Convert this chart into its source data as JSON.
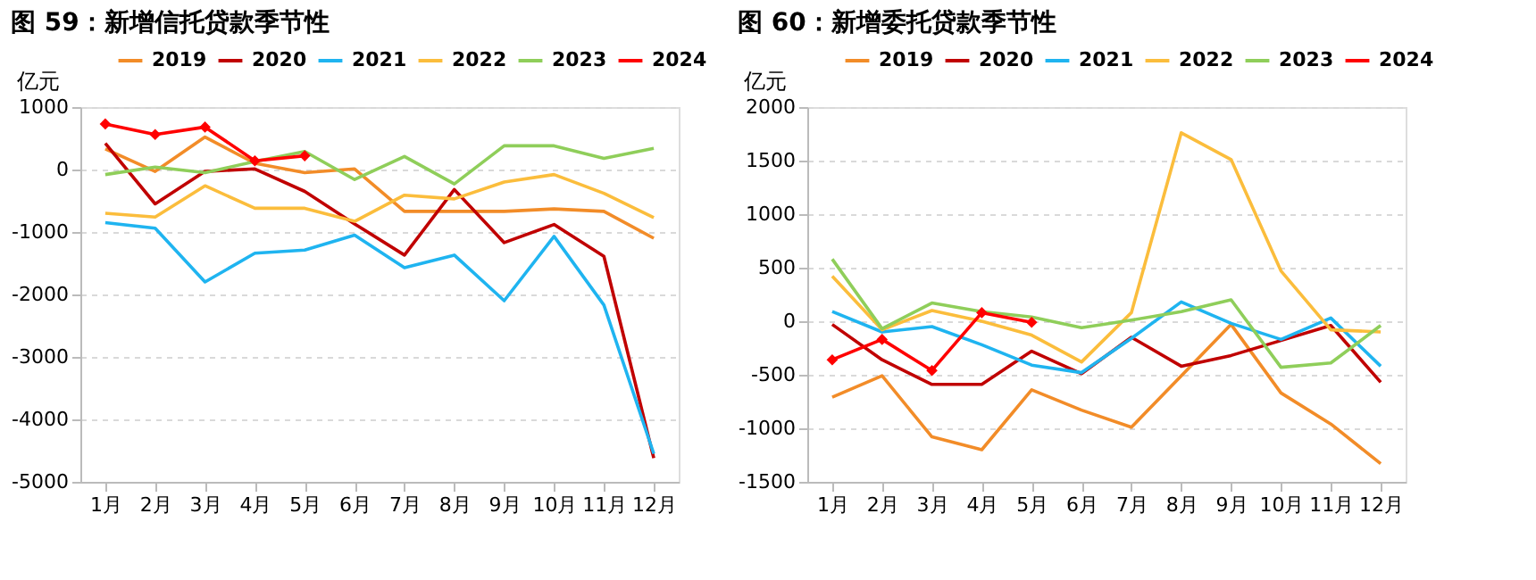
{
  "chart_data": [
    {
      "type": "line",
      "title": "图 59：新增信托贷款季节性",
      "ylabel": "亿元",
      "categories": [
        "1月",
        "2月",
        "3月",
        "4月",
        "5月",
        "6月",
        "7月",
        "8月",
        "9月",
        "10月",
        "11月",
        "12月"
      ],
      "ylim": [
        -5000,
        1000
      ],
      "yticks": [
        -5000,
        -4000,
        -3000,
        -2000,
        -1000,
        0,
        1000
      ],
      "grid": "y",
      "legend": "top",
      "line_style": "solid",
      "series": [
        {
          "name": "2019",
          "color": "#f28c28",
          "marker": "none",
          "values": [
            330,
            -30,
            520,
            100,
            -50,
            10,
            -670,
            -670,
            -670,
            -630,
            -670,
            -1100
          ]
        },
        {
          "name": "2020",
          "color": "#c00000",
          "marker": "none",
          "values": [
            420,
            -550,
            -30,
            10,
            -350,
            -870,
            -1370,
            -320,
            -1170,
            -880,
            -1390,
            -4620
          ]
        },
        {
          "name": "2021",
          "color": "#1fb4f0",
          "marker": "none",
          "values": [
            -850,
            -940,
            -1800,
            -1340,
            -1290,
            -1050,
            -1570,
            -1370,
            -2100,
            -1070,
            -2170,
            -4550
          ]
        },
        {
          "name": "2022",
          "color": "#fbbd3c",
          "marker": "none",
          "values": [
            -700,
            -760,
            -260,
            -620,
            -620,
            -830,
            -410,
            -470,
            -200,
            -80,
            -380,
            -770
          ]
        },
        {
          "name": "2023",
          "color": "#8fce5a",
          "marker": "none",
          "values": [
            -80,
            40,
            -50,
            130,
            290,
            -160,
            210,
            -230,
            380,
            380,
            180,
            340
          ]
        },
        {
          "name": "2024",
          "color": "#ff0000",
          "marker": "diamond",
          "values": [
            730,
            560,
            680,
            140,
            220,
            null,
            null,
            null,
            null,
            null,
            null,
            null
          ]
        }
      ]
    },
    {
      "type": "line",
      "title": "图 60：新增委托贷款季节性",
      "ylabel": "亿元",
      "categories": [
        "1月",
        "2月",
        "3月",
        "4月",
        "5月",
        "6月",
        "7月",
        "8月",
        "9月",
        "10月",
        "11月",
        "12月"
      ],
      "ylim": [
        -1500,
        2000
      ],
      "yticks": [
        -1500,
        -1000,
        -500,
        0,
        500,
        1000,
        1500,
        2000
      ],
      "grid": "y",
      "legend": "top",
      "line_style": "solid",
      "series": [
        {
          "name": "2019",
          "color": "#f28c28",
          "marker": "none",
          "values": [
            -710,
            -510,
            -1080,
            -1200,
            -640,
            -830,
            -990,
            -510,
            -30,
            -670,
            -960,
            -1330
          ]
        },
        {
          "name": "2020",
          "color": "#c00000",
          "marker": "none",
          "values": [
            -30,
            -360,
            -590,
            -590,
            -280,
            -490,
            -150,
            -420,
            -320,
            -180,
            -40,
            -570
          ]
        },
        {
          "name": "2021",
          "color": "#1fb4f0",
          "marker": "none",
          "values": [
            90,
            -100,
            -50,
            -220,
            -410,
            -480,
            -160,
            180,
            -20,
            -170,
            30,
            -420
          ]
        },
        {
          "name": "2022",
          "color": "#fbbd3c",
          "marker": "none",
          "values": [
            420,
            -80,
            100,
            0,
            -130,
            -380,
            80,
            1760,
            1510,
            470,
            -80,
            -100
          ]
        },
        {
          "name": "2023",
          "color": "#8fce5a",
          "marker": "none",
          "values": [
            580,
            -70,
            170,
            90,
            40,
            -60,
            10,
            90,
            200,
            -430,
            -390,
            -40
          ]
        },
        {
          "name": "2024",
          "color": "#ff0000",
          "marker": "diamond",
          "values": [
            -360,
            -170,
            -460,
            80,
            -10,
            null,
            null,
            null,
            null,
            null,
            null,
            null
          ]
        }
      ]
    }
  ]
}
